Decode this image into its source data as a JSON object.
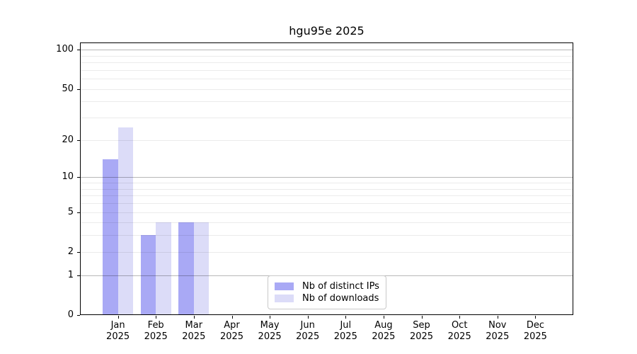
{
  "chart_data": {
    "type": "bar",
    "title": "hgu95e 2025",
    "scale": "log1p",
    "categories": [
      "Jan",
      "Feb",
      "Mar",
      "Apr",
      "May",
      "Jun",
      "Jul",
      "Aug",
      "Sep",
      "Oct",
      "Nov",
      "Dec"
    ],
    "year": "2025",
    "series": [
      {
        "name": "Nb of distinct IPs",
        "color": "#a9a9f5",
        "values": [
          14,
          3,
          4,
          0,
          0,
          0,
          0,
          0,
          0,
          0,
          0,
          0
        ]
      },
      {
        "name": "Nb of downloads",
        "color": "#dcdcf8",
        "values": [
          25,
          4,
          4,
          0,
          0,
          0,
          0,
          0,
          0,
          0,
          0,
          0
        ]
      }
    ],
    "y_ticks": [
      100,
      50,
      20,
      10,
      5,
      2,
      1,
      0
    ],
    "grid": {
      "major": [
        1,
        10,
        100
      ],
      "minor": [
        2,
        3,
        4,
        5,
        6,
        7,
        8,
        9,
        20,
        30,
        40,
        50,
        60,
        70,
        80,
        90
      ]
    },
    "ylim": [
      0,
      115
    ],
    "grid_on": true,
    "legend_position": "bottom-center"
  }
}
